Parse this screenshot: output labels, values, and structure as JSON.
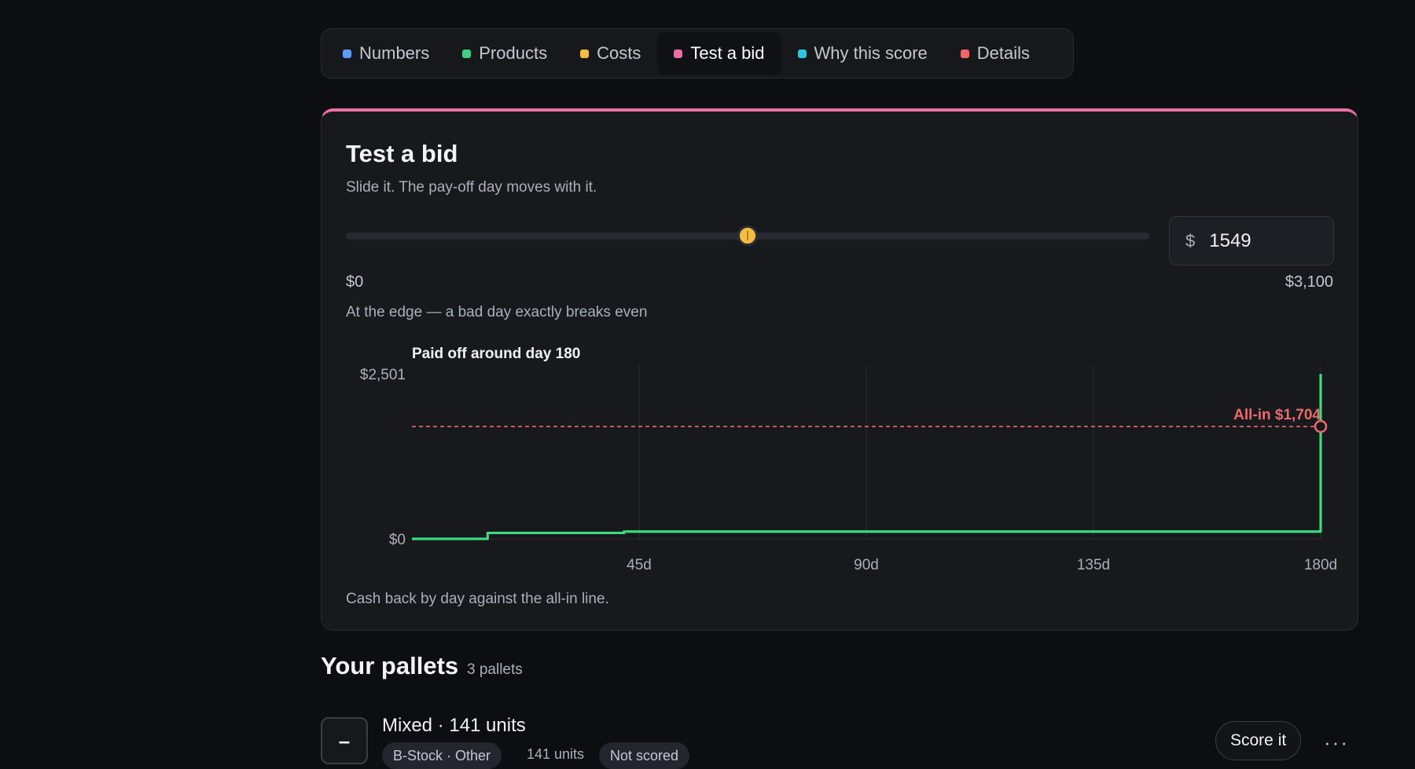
{
  "tabs": [
    {
      "label": "Numbers",
      "color": "#5b9cf5",
      "active": false
    },
    {
      "label": "Products",
      "color": "#3ecf86",
      "active": false
    },
    {
      "label": "Costs",
      "color": "#f4bf3a",
      "active": false
    },
    {
      "label": "Test a bid",
      "color": "#f06aa6",
      "active": true
    },
    {
      "label": "Why this score",
      "color": "#2cc6e3",
      "active": false
    },
    {
      "label": "Details",
      "color": "#f06767",
      "active": false
    }
  ],
  "card": {
    "title": "Test a bid",
    "subtitle": "Slide it. The pay-off day moves with it.",
    "accent_color": "#ec6fa8",
    "currency_symbol": "$",
    "bid_value": "1549",
    "slider_position": 0.5,
    "range_min": "$0",
    "range_max": "$3,100",
    "verdict": "At the edge — a bad day exactly breaks even",
    "caption": "Cash back by day against the all-in line."
  },
  "chart_data": {
    "type": "line",
    "title": "Paid off around day 180",
    "y_tick_labels": [
      "$0",
      "$2,501"
    ],
    "x_tick_labels": [
      "45d",
      "90d",
      "135d",
      "180d"
    ],
    "x_ticks": [
      45,
      90,
      135,
      180
    ],
    "xlim": [
      0,
      180
    ],
    "ylim": [
      0,
      2501
    ],
    "grid": "vertical",
    "series": [
      {
        "color": "#3ddc7a",
        "step": true,
        "x": [
          0,
          15,
          15,
          42,
          42,
          180,
          180
        ],
        "y": [
          0,
          0,
          90,
          90,
          110,
          110,
          2501
        ]
      }
    ],
    "reference_line": {
      "label": "All-in $1,704",
      "y": 1704,
      "color": "#ee6a6a",
      "style": "dashed"
    },
    "marker": {
      "x": 180,
      "y": 1704
    }
  },
  "pallets": {
    "title": "Your pallets",
    "count": "3 pallets",
    "items": [
      {
        "toggle": "–",
        "title": "Mixed · 141 units",
        "chips": [
          "B-Stock · Other",
          "Not scored"
        ],
        "units": "141 units",
        "score_label": "Score it",
        "more_label": "···"
      }
    ]
  }
}
